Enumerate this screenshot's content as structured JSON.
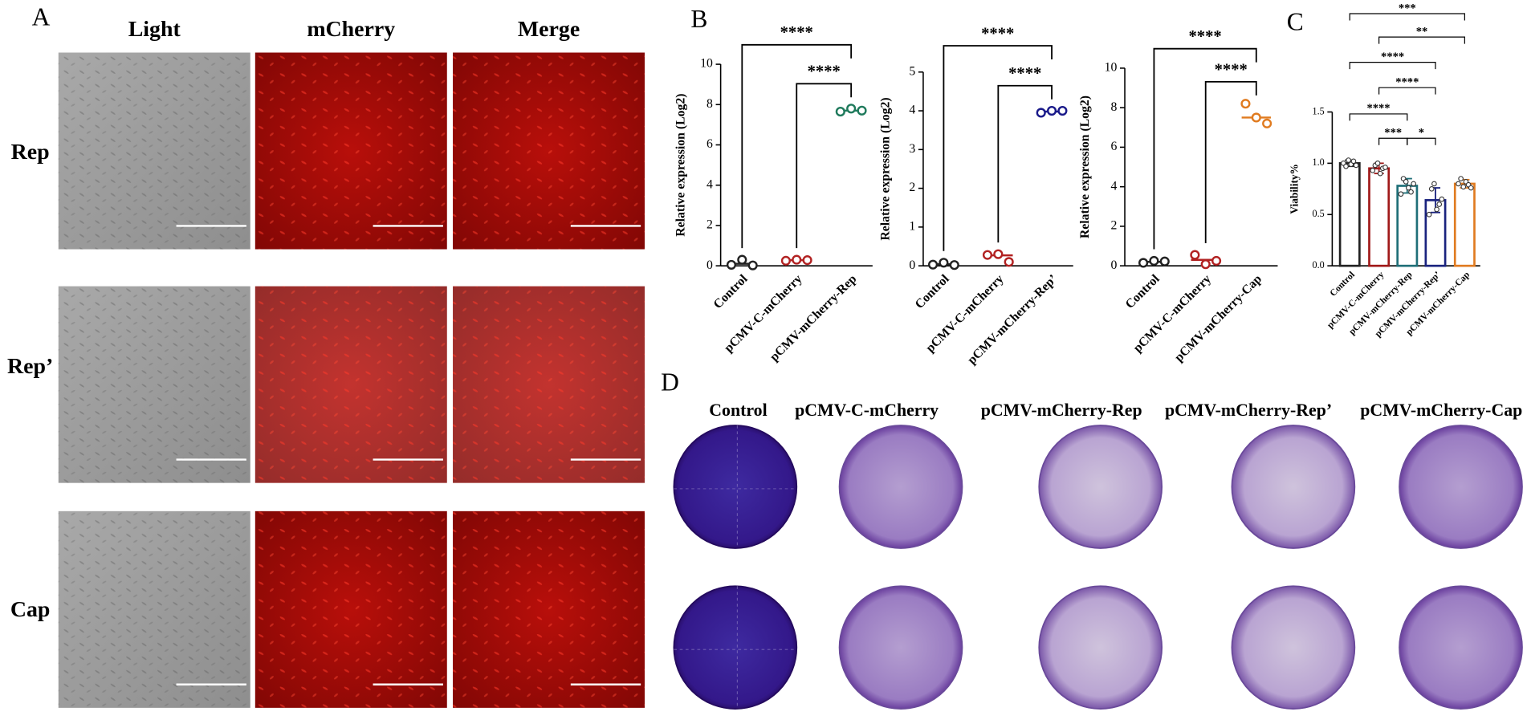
{
  "panel_labels": [
    "A",
    "B",
    "C",
    "D"
  ],
  "panel_a": {
    "columns": [
      "Light",
      "mCherry",
      "Merge"
    ],
    "rows": [
      "Rep",
      "Rep’",
      "Cap"
    ]
  },
  "panel_d": {
    "columns": [
      "Control",
      "pCMV-C-mCherry",
      "pCMV-mCherry-Rep",
      "pCMV-mCherry-Rep’",
      "pCMV-mCherry-Cap"
    ]
  },
  "chart_data": [
    {
      "type": "dot",
      "ylabel": "Relative expression (Log2)",
      "categories": [
        "Control",
        "pCMV-C-mCherry",
        "pCMV-mCherry-Rep"
      ],
      "colors": [
        "#222222",
        "#b22222",
        "#1f7a5c"
      ],
      "values": [
        [
          0.05,
          0.3,
          0.02
        ],
        [
          0.25,
          0.3,
          0.28
        ],
        [
          7.65,
          7.8,
          7.7
        ]
      ],
      "means": [
        0.1,
        0.28,
        7.7
      ],
      "ylim": [
        0,
        10
      ],
      "yticks": [
        0,
        2,
        4,
        6,
        8,
        10
      ],
      "significance": [
        {
          "pair": [
            1,
            2
          ],
          "label": "****"
        },
        {
          "pair": [
            0,
            2
          ],
          "label": "****"
        }
      ]
    },
    {
      "type": "dot",
      "ylabel": "Relative expression (Log2)",
      "categories": [
        "Control",
        "pCMV-C-mCherry",
        "pCMV-mCherry-Rep’"
      ],
      "colors": [
        "#222222",
        "#b22222",
        "#1a1a8a"
      ],
      "values": [
        [
          0.03,
          0.08,
          0.02
        ],
        [
          0.28,
          0.3,
          0.1
        ],
        [
          3.95,
          4.0,
          4.0
        ]
      ],
      "means": [
        0.04,
        0.27,
        3.98
      ],
      "ylim": [
        0,
        5
      ],
      "yticks": [
        0,
        1,
        2,
        3,
        4,
        5
      ],
      "significance": [
        {
          "pair": [
            1,
            2
          ],
          "label": "****"
        },
        {
          "pair": [
            0,
            2
          ],
          "label": "****"
        }
      ]
    },
    {
      "type": "dot",
      "ylabel": "Relative expression (Log2)",
      "categories": [
        "Control",
        "pCMV-C-mCherry",
        "pCMV-mCherry-Cap"
      ],
      "colors": [
        "#222222",
        "#b22222",
        "#e07b20"
      ],
      "values": [
        [
          0.15,
          0.25,
          0.22
        ],
        [
          0.55,
          0.08,
          0.25
        ],
        [
          8.2,
          7.5,
          7.2
        ]
      ],
      "means": [
        0.2,
        0.3,
        7.5
      ],
      "ylim": [
        0,
        10
      ],
      "yticks": [
        0,
        2,
        4,
        6,
        8,
        10
      ],
      "significance": [
        {
          "pair": [
            1,
            2
          ],
          "label": "****"
        },
        {
          "pair": [
            0,
            2
          ],
          "label": "****"
        }
      ]
    },
    {
      "type": "bar",
      "ylabel": "Viability%",
      "categories": [
        "Control",
        "pCMV-C-mCherry",
        "pCMV-mCherry-Rep",
        "pCMV-mCherry-Rep’",
        "pCMV-mCherry-Cap"
      ],
      "colors": [
        "#222222",
        "#a01818",
        "#1f6f78",
        "#1a237e",
        "#e07b20"
      ],
      "values": [
        1.0,
        0.95,
        0.78,
        0.64,
        0.8
      ],
      "errors": [
        0.03,
        0.05,
        0.07,
        0.12,
        0.04
      ],
      "points": [
        [
          1.0,
          0.97,
          1.03,
          0.99,
          1.02,
          0.98
        ],
        [
          0.93,
          0.98,
          1.0,
          0.9,
          0.95,
          0.96
        ],
        [
          0.7,
          0.85,
          0.82,
          0.76,
          0.72,
          0.8
        ],
        [
          0.5,
          0.75,
          0.8,
          0.55,
          0.6,
          0.65
        ],
        [
          0.8,
          0.85,
          0.77,
          0.82,
          0.79,
          0.76
        ]
      ],
      "ylim": [
        0,
        1.5
      ],
      "yticks": [
        {
          "value": 0,
          "label": "0.0"
        },
        0.5,
        {
          "value": 1,
          "label": "1.0"
        },
        1.5
      ],
      "significance": [
        {
          "pair": [
            0,
            4
          ],
          "label": "***"
        },
        {
          "pair": [
            1,
            4
          ],
          "label": "**"
        },
        {
          "pair": [
            0,
            3
          ],
          "label": "****"
        },
        {
          "pair": [
            1,
            3
          ],
          "label": "****"
        },
        {
          "pair": [
            0,
            2
          ],
          "label": "****"
        },
        {
          "pair": [
            1,
            2
          ],
          "label": "***"
        },
        {
          "pair": [
            2,
            3
          ],
          "label": "*"
        }
      ]
    }
  ]
}
